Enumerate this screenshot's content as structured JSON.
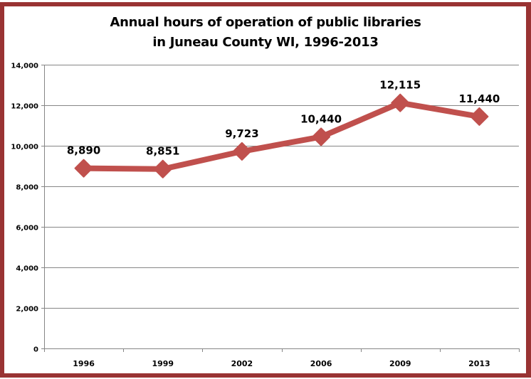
{
  "chart_data": {
    "type": "line",
    "title": "Annual hours of operation of public libraries in Juneau County WI, 1996-2013",
    "title_lines": [
      "Annual hours of operation of public libraries",
      "in Juneau County WI, 1996-2013"
    ],
    "categories": [
      "1996",
      "1999",
      "2002",
      "2006",
      "2009",
      "2013"
    ],
    "series": [
      {
        "name": "Annual hours",
        "values": [
          8890,
          8851,
          9723,
          10440,
          12115,
          11440
        ],
        "labels": [
          "8,890",
          "8,851",
          "9,723",
          "10,440",
          "12,115",
          "11,440"
        ],
        "color": "#C0504D",
        "marker": "diamond"
      }
    ],
    "xlabel": "",
    "ylabel": "",
    "ylim": [
      0,
      14000
    ],
    "yticks": [
      0,
      2000,
      4000,
      6000,
      8000,
      10000,
      12000,
      14000
    ],
    "ytick_labels": [
      "0",
      "2,000",
      "4,000",
      "6,000",
      "8,000",
      "10,000",
      "12,000",
      "14,000"
    ],
    "grid": true,
    "legend": "none"
  },
  "colors": {
    "border": "#993333",
    "series": "#C0504D",
    "grid": "#868686"
  }
}
